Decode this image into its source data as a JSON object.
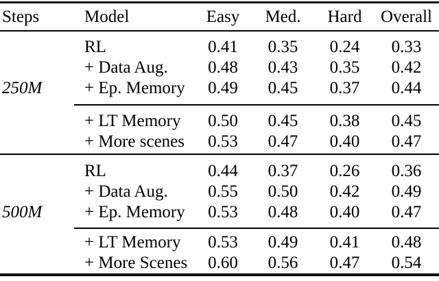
{
  "page": {
    "background_color": "#ffffff",
    "text_color": "#000000",
    "rule_color": "#000000"
  },
  "table": {
    "headers": {
      "steps": "Steps",
      "model": "Model",
      "easy": "Easy",
      "med": "Med.",
      "hard": "Hard",
      "overall": "Overall"
    },
    "sections": [
      {
        "steps_label": "250M",
        "group1": [
          {
            "model": "RL",
            "easy": "0.41",
            "med": "0.35",
            "hard": "0.24",
            "overall": "0.33"
          },
          {
            "model": "+ Data Aug.",
            "easy": "0.48",
            "med": "0.43",
            "hard": "0.35",
            "overall": "0.42"
          },
          {
            "model": "+ Ep. Memory",
            "easy": "0.49",
            "med": "0.45",
            "hard": "0.37",
            "overall": "0.44"
          }
        ],
        "group2": [
          {
            "model": "+ LT Memory",
            "easy": "0.50",
            "med": "0.45",
            "hard": "0.38",
            "overall": "0.45"
          },
          {
            "model": "+ More scenes",
            "easy": "0.53",
            "med": "0.47",
            "hard": "0.40",
            "overall": "0.47"
          }
        ]
      },
      {
        "steps_label": "500M",
        "group1": [
          {
            "model": "RL",
            "easy": "0.44",
            "med": "0.37",
            "hard": "0.26",
            "overall": "0.36"
          },
          {
            "model": "+ Data Aug.",
            "easy": "0.55",
            "med": "0.50",
            "hard": "0.42",
            "overall": "0.49"
          },
          {
            "model": "+ Ep. Memory",
            "easy": "0.53",
            "med": "0.48",
            "hard": "0.40",
            "overall": "0.47"
          }
        ],
        "group2": [
          {
            "model": "+ LT Memory",
            "easy": "0.53",
            "med": "0.49",
            "hard": "0.41",
            "overall": "0.48"
          },
          {
            "model": "+ More Scenes",
            "easy": "0.60",
            "med": "0.56",
            "hard": "0.47",
            "overall": "0.54"
          }
        ]
      }
    ]
  },
  "chart_data": {
    "type": "table",
    "title": "",
    "columns": [
      "Steps",
      "Model",
      "Easy",
      "Med.",
      "Hard",
      "Overall"
    ],
    "rows": [
      [
        "250M",
        "RL",
        0.41,
        0.35,
        0.24,
        0.33
      ],
      [
        "250M",
        "+ Data Aug.",
        0.48,
        0.43,
        0.35,
        0.42
      ],
      [
        "250M",
        "+ Ep. Memory",
        0.49,
        0.45,
        0.37,
        0.44
      ],
      [
        "250M",
        "+ LT Memory",
        0.5,
        0.45,
        0.38,
        0.45
      ],
      [
        "250M",
        "+ More scenes",
        0.53,
        0.47,
        0.4,
        0.47
      ],
      [
        "500M",
        "RL",
        0.44,
        0.37,
        0.26,
        0.36
      ],
      [
        "500M",
        "+ Data Aug.",
        0.55,
        0.5,
        0.42,
        0.49
      ],
      [
        "500M",
        "+ Ep. Memory",
        0.53,
        0.48,
        0.4,
        0.47
      ],
      [
        "500M",
        "+ LT Memory",
        0.53,
        0.49,
        0.41,
        0.48
      ],
      [
        "500M",
        "+ More Scenes",
        0.6,
        0.56,
        0.47,
        0.54
      ]
    ]
  }
}
